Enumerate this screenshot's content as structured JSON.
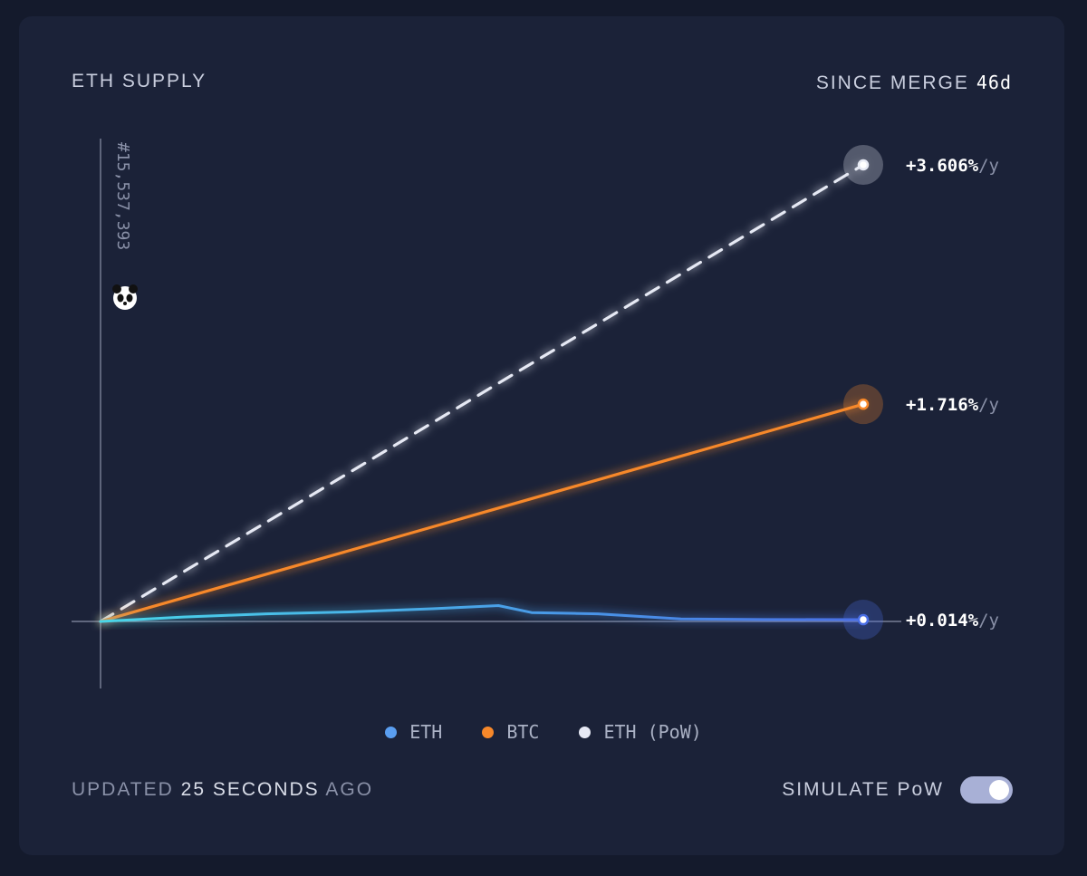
{
  "header": {
    "title": "ETH SUPPLY",
    "since_label": "SINCE MERGE",
    "since_value": "46d"
  },
  "merge_block": "#15,537,393",
  "colors": {
    "eth": "#4a8fee",
    "btc": "#f7882a",
    "pow": "#e6e9f4",
    "background": "#1b2238"
  },
  "legend": [
    {
      "label": "ETH",
      "color": "#5a9ef0"
    },
    {
      "label": "BTC",
      "color": "#f7882a"
    },
    {
      "label": "ETH (PoW)",
      "color": "#e6e9f4"
    }
  ],
  "footer": {
    "updated_prefix": "UPDATED",
    "updated_age": "25 SECONDS",
    "updated_suffix": "AGO",
    "simulate_label": "SIMULATE PoW",
    "simulate_on": true
  },
  "chart_data": {
    "type": "line",
    "xlabel": "",
    "ylabel": "",
    "xlim": [
      0,
      46
    ],
    "ylim": [
      -0.3,
      4.3
    ],
    "grid": false,
    "legend_position": "bottom-center",
    "series": [
      {
        "name": "ETH (PoW)",
        "style": "dashed",
        "color": "#e6e9f4",
        "x": [
          0,
          46
        ],
        "y": [
          0,
          3.606
        ],
        "end_label": "+3.606%",
        "end_unit": "/y"
      },
      {
        "name": "BTC",
        "style": "solid",
        "color": "#f7882a",
        "x": [
          0,
          46
        ],
        "y": [
          0,
          1.716
        ],
        "end_label": "+1.716%",
        "end_unit": "/y"
      },
      {
        "name": "ETH",
        "style": "solid",
        "color": "#4a8fee",
        "x": [
          0,
          5,
          10,
          15,
          20,
          24,
          26,
          30,
          35,
          40,
          46
        ],
        "y": [
          0,
          0.035,
          0.06,
          0.075,
          0.1,
          0.125,
          0.07,
          0.06,
          0.02,
          0.015,
          0.014
        ],
        "end_label": "+0.014%",
        "end_unit": "/y"
      }
    ]
  }
}
